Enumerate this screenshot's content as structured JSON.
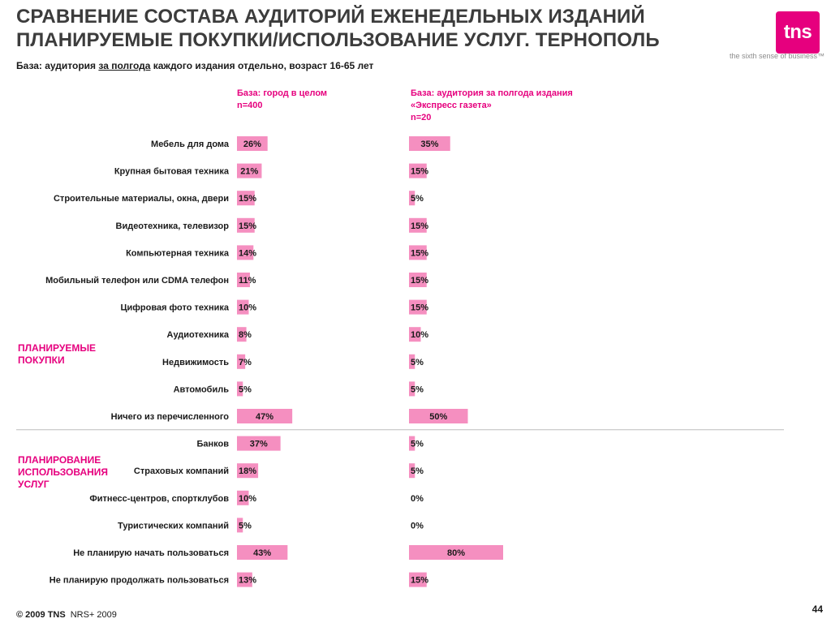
{
  "title": {
    "line1": "СРАВНЕНИЕ СОСТАВА АУДИТОРИЙ ЕЖЕНЕДЕЛЬНЫХ ИЗДАНИЙ",
    "line2": "ПЛАНИРУЕМЫЕ ПОКУПКИ/ИСПОЛЬЗОВАНИЕ УСЛУГ. ТЕРНОПОЛЬ"
  },
  "logo": {
    "text": "tns",
    "tagline": "the sixth sense of business™",
    "color": "#e6007e"
  },
  "subtitle": {
    "part1": "База: аудитория ",
    "underlined": "за полгода",
    "part2": " каждого издания отдельно, возраст 16-65 лет"
  },
  "group_labels": {
    "purchases": [
      "ПЛАНИРУЕМЫЕ",
      "ПОКУПКИ"
    ],
    "services": [
      "ПЛАНИРОВАНИЕ",
      "ИСПОЛЬЗОВАНИЯ",
      "УСЛУГ"
    ]
  },
  "footer": {
    "copyright": "© 2009 TNS",
    "source": "NRS+ 2009"
  },
  "page_number": "44",
  "colors": {
    "bar": "#f58fc0",
    "accent": "#e6007e",
    "divider": "#bdbdbd"
  },
  "chart_data": {
    "type": "bar",
    "orientation": "horizontal",
    "categories": [
      "Мебель для дома",
      "Крупная бытовая техника",
      "Строительные материалы, окна, двери",
      "Видеотехника, телевизор",
      "Компьютерная техника",
      "Мобильный телефон или CDMA телефон",
      "Цифровая фото техника",
      "Аудиотехника",
      "Недвижимость",
      "Автомобиль",
      "Ничего из перечисленного",
      "Банков",
      "Страховых компаний",
      "Фитнесс-центров, спортклубов",
      "Туристических компаний",
      "Не планирую начать пользоваться",
      "Не планирую продолжать пользоваться"
    ],
    "series": [
      {
        "name": "База: город в целом\nn=400",
        "values": [
          26,
          21,
          15,
          15,
          14,
          11,
          10,
          8,
          7,
          5,
          47,
          37,
          18,
          10,
          5,
          43,
          13
        ]
      },
      {
        "name": "База: аудитория за полгода издания\n«Экспресс газета»\nn=20",
        "values": [
          35,
          15,
          5,
          15,
          15,
          15,
          15,
          10,
          5,
          5,
          50,
          5,
          5,
          0,
          0,
          80,
          15
        ]
      }
    ],
    "value_suffix": "%",
    "xlim": [
      0,
      100
    ]
  }
}
